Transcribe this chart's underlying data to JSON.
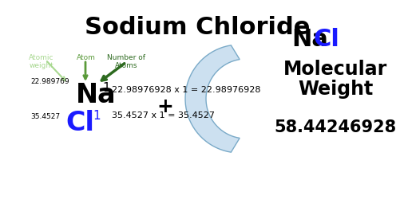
{
  "title": "Sodium Chloride",
  "background_color": "#ffffff",
  "title_fontsize": 22,
  "title_color": "#000000",
  "label_atomic_weight": "Atomic\nweight",
  "label_atom": "Atom",
  "label_num_atoms": "Number of\nAtoms",
  "na_symbol": "Na",
  "na_subscript": "1",
  "na_atomic_weight": "22.989769",
  "na_equation": "22.98976928 x 1 = 22.98976928",
  "cl_symbol": "Cl",
  "cl_subscript": "1",
  "cl_atomic_weight": "35.4527",
  "cl_equation": "35.4527 x 1 = 35.4527",
  "plus_sign": "+",
  "nacl_na": "Na",
  "nacl_cl": "Cl",
  "mol_weight_label1": "Molecular",
  "mol_weight_label2": "Weight",
  "mol_weight_value": "58.44246928",
  "color_black": "#000000",
  "color_blue": "#1a1aff",
  "color_light_green": "#a8d890",
  "color_med_green": "#5a9a3a",
  "color_dark_green": "#2d6a1f",
  "color_bracket_fill": "#cce0f0",
  "color_bracket_edge": "#7aaac8",
  "small_label_fontsize": 6.5,
  "na_fontsize": 24,
  "cl_fontsize": 24,
  "subscript_fontsize": 11,
  "eq_fontsize": 8,
  "nacl_fontsize": 22,
  "mol_weight_fontsize": 17,
  "mol_value_fontsize": 15,
  "plus_fontsize": 18,
  "small_num_fontsize": 6.5
}
